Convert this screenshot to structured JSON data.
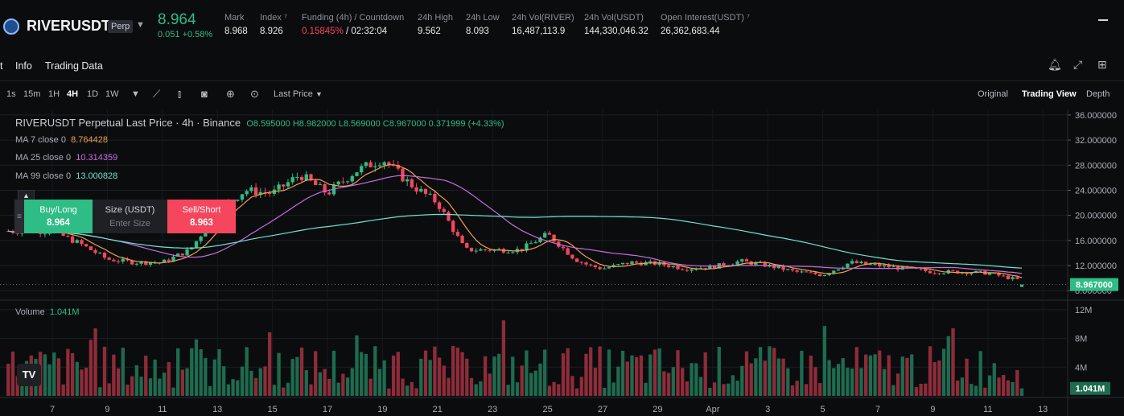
{
  "header": {
    "symbol": "RIVERUSDT",
    "badge": "Perp",
    "last_price": "8.964",
    "change": "0.051 +0.58%",
    "stats": [
      {
        "label": "Mark",
        "value": "8.968"
      },
      {
        "label": "Index ⁷",
        "value": "8.926"
      },
      {
        "label": "Funding (4h) / Countdown",
        "value_a": "0.15845%",
        "value_b": " / 02:32:04"
      },
      {
        "label": "24h High",
        "value": "9.562"
      },
      {
        "label": "24h Low",
        "value": "8.093"
      },
      {
        "label": "24h Vol(RIVER)",
        "value": "16,487,113.9"
      },
      {
        "label": "24h Vol(USDT)",
        "value": "144,330,046.32"
      },
      {
        "label": "Open Interest(USDT) ⁷",
        "value": "26,362,683.44"
      }
    ]
  },
  "tabs": {
    "partial": "t",
    "info": "Info",
    "trading_data": "Trading Data"
  },
  "toolbar": {
    "intervals": [
      "1s",
      "15m",
      "1H",
      "4H",
      "1D",
      "1W"
    ],
    "active_interval": "4H",
    "price_type": "Last Price",
    "views": [
      "Original",
      "Trading View",
      "Depth"
    ],
    "active_view": "Trading View"
  },
  "legend": {
    "title": "RIVERUSDT Perpetual Last Price · 4h · Binance",
    "ohlc": "O8.595000 H8.982000 L8.569000 C8.967000 0.371999 (+4.33%)",
    "ma": [
      {
        "label": "MA 7 close 0",
        "value": "8.764428",
        "color": "#f0a04b"
      },
      {
        "label": "MA 25 close 0",
        "value": "10.314359",
        "color": "#c86ee0"
      },
      {
        "label": "MA 99 close 0",
        "value": "13.000828",
        "color": "#6ee3d2"
      }
    ]
  },
  "trade_panel": {
    "buy_label": "Buy/Long",
    "buy_price": "8.964",
    "size_label": "Size (USDT)",
    "size_placeholder": "Enter Size",
    "sell_label": "Sell/Short",
    "sell_price": "8.963"
  },
  "volume": {
    "label": "Volume",
    "value": "1.041M",
    "last_label": "1.041M"
  },
  "chart_data": {
    "type": "candlestick",
    "title": "RIVERUSDT Perpetual Last Price · 4h · Binance",
    "price_axis_ticks": [
      "36.000000",
      "32.000000",
      "28.000000",
      "24.000000",
      "20.000000",
      "16.000000",
      "12.000000",
      "8.000000"
    ],
    "price_axis_values": [
      36,
      32,
      28,
      24,
      20,
      16,
      12,
      8
    ],
    "price_range": [
      7,
      36.5
    ],
    "last_price_label": "8.967000",
    "last_price": 8.967,
    "x_ticks": [
      "7",
      "9",
      "11",
      "13",
      "15",
      "17",
      "19",
      "21",
      "23",
      "25",
      "27",
      "29",
      "Apr",
      "3",
      "5",
      "7",
      "9",
      "11",
      "13"
    ],
    "volume_axis_ticks": [
      "12M",
      "8M",
      "4M"
    ],
    "volume_axis_values": [
      12,
      8,
      4
    ],
    "volume_range_millions": [
      0,
      13
    ],
    "close_path_days": [
      0,
      1,
      2,
      3,
      4,
      5,
      6,
      7,
      8,
      9,
      10,
      11,
      12,
      13,
      14,
      15,
      16,
      17,
      18,
      19,
      19.5
    ],
    "close_path": [
      17.5,
      15.5,
      13,
      12.5,
      12.5,
      14.5,
      20.5,
      24,
      23.5,
      26.5,
      23.5,
      27,
      29,
      25,
      22,
      14.5,
      14.5,
      14.5,
      17,
      13,
      12
    ],
    "close_path_days_b": [
      19.5,
      20,
      21,
      22,
      23,
      24,
      25,
      26,
      27,
      28,
      29,
      30,
      31,
      32,
      33,
      34,
      35,
      36,
      36.3
    ],
    "close_path_b": [
      12,
      11.5,
      12.5,
      12.3,
      11.5,
      11.8,
      12.7,
      12,
      11,
      10.5,
      12.5,
      12,
      11.5,
      11,
      11,
      10.8,
      9.8,
      9,
      9
    ]
  }
}
